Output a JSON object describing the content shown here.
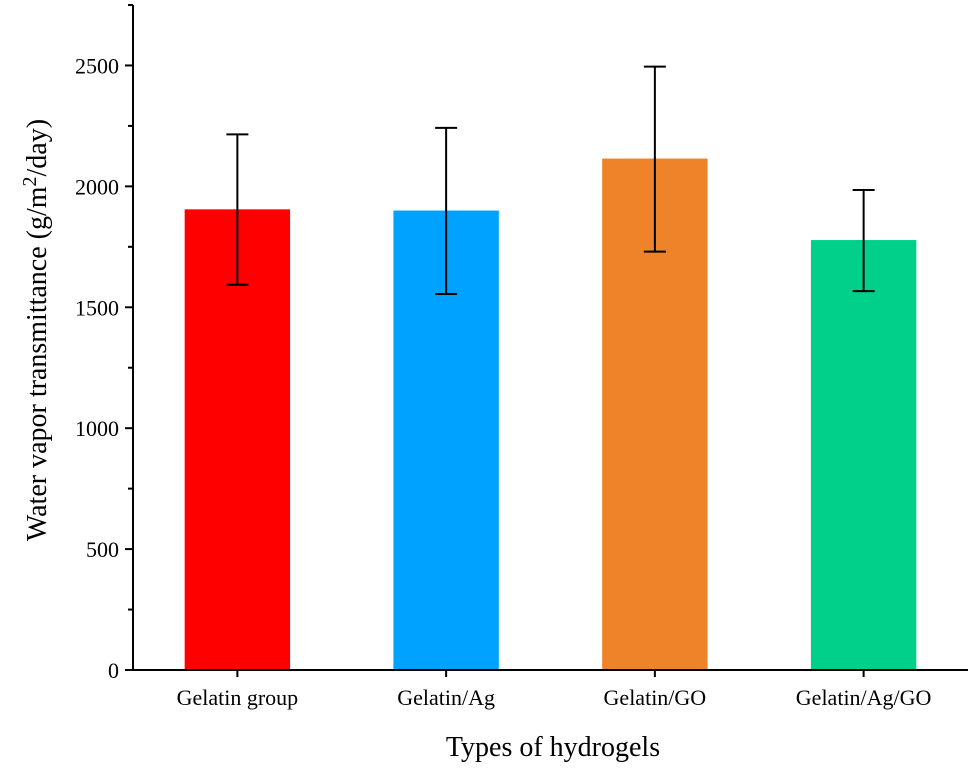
{
  "chart_data": {
    "type": "bar",
    "title": "",
    "xlabel": "Types of hydrogels",
    "ylabel_main": "Water vapor transmittance (g/m",
    "ylabel_sup": "2",
    "ylabel_tail": "/day)",
    "categories": [
      "Gelatin group",
      "Gelatin/Ag",
      "Gelatin/GO",
      "Gelatin/Ag/GO"
    ],
    "values": [
      1905,
      1900,
      2115,
      1778
    ],
    "error_low": [
      1593,
      1555,
      1730,
      1567
    ],
    "error_high": [
      2215,
      2242,
      2495,
      1985
    ],
    "colors": [
      "#ff0000",
      "#00a2ff",
      "#ee832a",
      "#00d08a"
    ],
    "ylim": [
      0,
      2750
    ],
    "yticks": [
      0,
      500,
      1000,
      1500,
      2000,
      2500
    ]
  }
}
